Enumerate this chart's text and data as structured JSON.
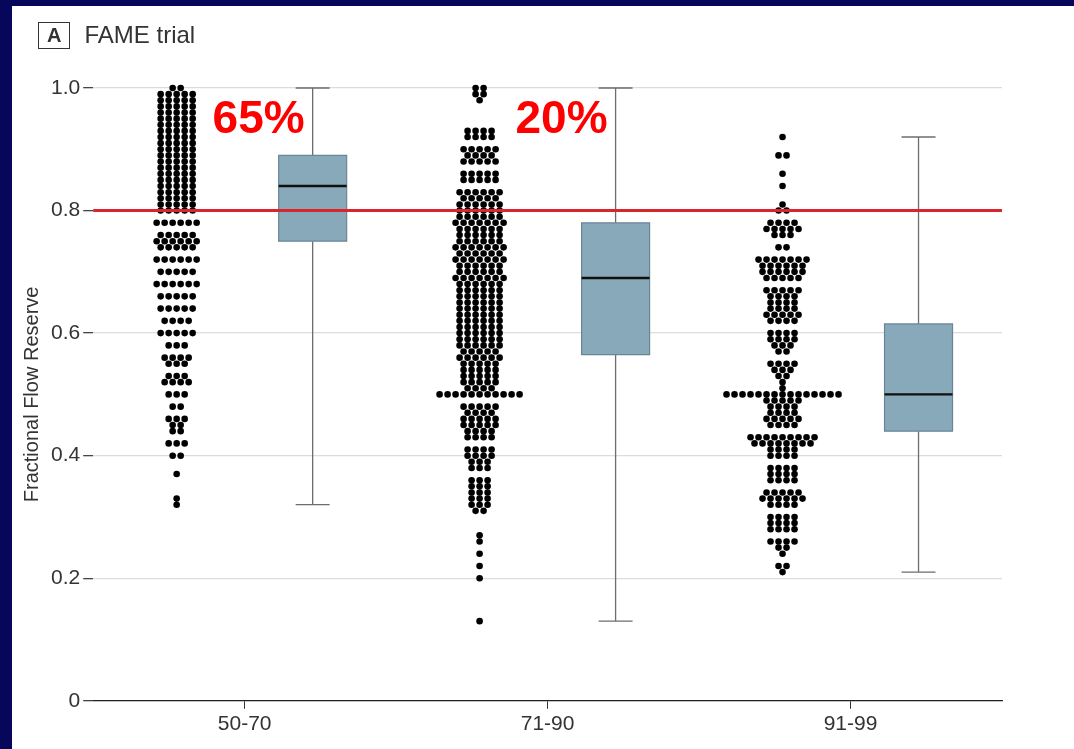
{
  "chart_data": {
    "type": "box",
    "title": "FAME trial",
    "ylabel": "Fractional Flow Reserve",
    "annotations": [
      "A",
      "65%",
      "20%"
    ],
    "categories": [
      "50-70",
      "71-90",
      "91-99"
    ],
    "ylim": [
      0,
      1
    ],
    "yticks": [
      0,
      0.2,
      0.4,
      0.6,
      0.8,
      {
        "value": 1,
        "label": "1.0"
      }
    ],
    "grid": "y",
    "legend": false,
    "marker": "circle",
    "ref_lines": [
      {
        "axis": "y",
        "value": 0.8,
        "color": "#d9262c"
      }
    ],
    "series": [
      {
        "color": "#88a9b9",
        "boxes": [
          {
            "low": 0.32,
            "q1": 0.75,
            "median": 0.84,
            "q3": 0.89,
            "high": 1.0
          },
          {
            "low": 0.13,
            "q1": 0.565,
            "median": 0.69,
            "q3": 0.78,
            "high": 1.0
          },
          {
            "low": 0.21,
            "q1": 0.44,
            "median": 0.5,
            "q3": 0.615,
            "high": 0.92
          }
        ]
      },
      {
        "type": "scatter",
        "color": "#000000",
        "x": [
          "50-70",
          "50-70",
          "50-70",
          "50-70",
          "50-70",
          "50-70",
          "50-70",
          "50-70",
          "50-70",
          "50-70",
          "50-70",
          "50-70",
          "50-70",
          "50-70",
          "50-70",
          "50-70",
          "50-70",
          "50-70",
          "50-70",
          "50-70",
          "50-70",
          "50-70",
          "50-70",
          "50-70",
          "50-70",
          "50-70",
          "50-70",
          "50-70",
          "50-70",
          "50-70",
          "50-70",
          "50-70",
          "50-70",
          "50-70",
          "50-70",
          "50-70",
          "50-70",
          "50-70",
          "50-70",
          "50-70",
          "50-70",
          "50-70",
          "50-70",
          "50-70",
          "50-70",
          "50-70",
          "50-70",
          "50-70",
          "50-70",
          "50-70",
          "50-70",
          "50-70",
          "50-70",
          "50-70",
          "50-70",
          "50-70",
          "50-70",
          "50-70",
          "50-70",
          "50-70",
          "50-70",
          "50-70",
          "50-70",
          "50-70",
          "50-70",
          "50-70",
          "50-70",
          "50-70",
          "50-70",
          "50-70",
          "50-70",
          "50-70",
          "50-70",
          "50-70",
          "50-70",
          "50-70",
          "50-70",
          "50-70",
          "50-70",
          "50-70",
          "50-70",
          "50-70",
          "50-70",
          "50-70",
          "50-70",
          "50-70",
          "50-70",
          "50-70",
          "50-70",
          "50-70",
          "50-70",
          "50-70",
          "50-70",
          "50-70",
          "50-70",
          "50-70",
          "50-70",
          "50-70",
          "50-70",
          "50-70",
          "50-70",
          "50-70",
          "50-70",
          "50-70",
          "50-70",
          "50-70",
          "50-70",
          "50-70",
          "50-70",
          "50-70",
          "50-70",
          "50-70",
          "50-70",
          "50-70",
          "50-70",
          "50-70",
          "50-70",
          "50-70",
          "50-70",
          "50-70",
          "50-70",
          "50-70",
          "50-70",
          "50-70",
          "50-70",
          "50-70",
          "50-70",
          "50-70",
          "50-70",
          "50-70",
          "50-70",
          "50-70",
          "50-70",
          "50-70",
          "50-70",
          "50-70",
          "50-70",
          "50-70",
          "50-70",
          "50-70",
          "50-70",
          "50-70",
          "50-70",
          "50-70",
          "50-70",
          "50-70",
          "50-70",
          "50-70",
          "50-70",
          "50-70",
          "50-70",
          "50-70",
          "50-70",
          "50-70",
          "50-70",
          "50-70",
          "50-70",
          "50-70",
          "50-70",
          "50-70",
          "50-70",
          "50-70",
          "50-70",
          "50-70",
          "50-70",
          "50-70",
          "50-70",
          "50-70",
          "50-70",
          "50-70",
          "50-70",
          "50-70",
          "50-70",
          "50-70",
          "50-70",
          "50-70",
          "50-70",
          "50-70",
          "50-70",
          "50-70",
          "50-70",
          "50-70",
          "50-70",
          "50-70",
          "50-70",
          "50-70",
          "50-70",
          "50-70",
          "50-70",
          "50-70",
          "50-70",
          "50-70",
          "50-70",
          "50-70",
          "50-70",
          "50-70",
          "50-70"
        ],
        "values": [
          1,
          1,
          0.99,
          0.99,
          0.99,
          0.99,
          0.99,
          0.98,
          0.98,
          0.98,
          0.98,
          0.98,
          0.97,
          0.97,
          0.97,
          0.97,
          0.97,
          0.96,
          0.96,
          0.96,
          0.96,
          0.96,
          0.95,
          0.95,
          0.95,
          0.95,
          0.95,
          0.94,
          0.94,
          0.94,
          0.94,
          0.94,
          0.93,
          0.93,
          0.93,
          0.93,
          0.93,
          0.92,
          0.92,
          0.92,
          0.92,
          0.92,
          0.91,
          0.91,
          0.91,
          0.91,
          0.91,
          0.9,
          0.9,
          0.9,
          0.9,
          0.9,
          0.89,
          0.89,
          0.89,
          0.89,
          0.89,
          0.88,
          0.88,
          0.88,
          0.88,
          0.88,
          0.87,
          0.87,
          0.87,
          0.87,
          0.87,
          0.86,
          0.86,
          0.86,
          0.86,
          0.86,
          0.85,
          0.85,
          0.85,
          0.85,
          0.85,
          0.84,
          0.84,
          0.84,
          0.84,
          0.84,
          0.83,
          0.83,
          0.83,
          0.83,
          0.83,
          0.82,
          0.82,
          0.82,
          0.82,
          0.82,
          0.81,
          0.81,
          0.81,
          0.81,
          0.81,
          0.8,
          0.8,
          0.8,
          0.8,
          0.8,
          0.78,
          0.78,
          0.78,
          0.78,
          0.78,
          0.78,
          0.76,
          0.76,
          0.76,
          0.76,
          0.76,
          0.75,
          0.75,
          0.75,
          0.75,
          0.75,
          0.75,
          0.74,
          0.74,
          0.74,
          0.74,
          0.74,
          0.72,
          0.72,
          0.72,
          0.72,
          0.72,
          0.72,
          0.7,
          0.7,
          0.7,
          0.7,
          0.7,
          0.68,
          0.68,
          0.68,
          0.68,
          0.68,
          0.68,
          0.66,
          0.66,
          0.66,
          0.66,
          0.66,
          0.64,
          0.64,
          0.64,
          0.64,
          0.64,
          0.62,
          0.62,
          0.62,
          0.62,
          0.6,
          0.6,
          0.6,
          0.6,
          0.6,
          0.58,
          0.58,
          0.58,
          0.56,
          0.56,
          0.56,
          0.56,
          0.55,
          0.55,
          0.55,
          0.53,
          0.53,
          0.53,
          0.52,
          0.52,
          0.52,
          0.52,
          0.5,
          0.5,
          0.5,
          0.48,
          0.48,
          0.46,
          0.46,
          0.46,
          0.45,
          0.45,
          0.44,
          0.44,
          0.42,
          0.42,
          0.42,
          0.4,
          0.4,
          0.37,
          0.33,
          0.32
        ]
      },
      {
        "type": "scatter",
        "color": "#000000",
        "x": [
          "71-90",
          "71-90",
          "71-90",
          "71-90",
          "71-90",
          "71-90",
          "71-90",
          "71-90",
          "71-90",
          "71-90",
          "71-90",
          "71-90",
          "71-90",
          "71-90",
          "71-90",
          "71-90",
          "71-90",
          "71-90",
          "71-90",
          "71-90",
          "71-90",
          "71-90",
          "71-90",
          "71-90",
          "71-90",
          "71-90",
          "71-90",
          "71-90",
          "71-90",
          "71-90",
          "71-90",
          "71-90",
          "71-90",
          "71-90",
          "71-90",
          "71-90",
          "71-90",
          "71-90",
          "71-90",
          "71-90",
          "71-90",
          "71-90",
          "71-90",
          "71-90",
          "71-90",
          "71-90",
          "71-90",
          "71-90",
          "71-90",
          "71-90",
          "71-90",
          "71-90",
          "71-90",
          "71-90",
          "71-90",
          "71-90",
          "71-90",
          "71-90",
          "71-90",
          "71-90",
          "71-90",
          "71-90",
          "71-90",
          "71-90",
          "71-90",
          "71-90",
          "71-90",
          "71-90",
          "71-90",
          "71-90",
          "71-90",
          "71-90",
          "71-90",
          "71-90",
          "71-90",
          "71-90",
          "71-90",
          "71-90",
          "71-90",
          "71-90",
          "71-90",
          "71-90",
          "71-90",
          "71-90",
          "71-90",
          "71-90",
          "71-90",
          "71-90",
          "71-90",
          "71-90",
          "71-90",
          "71-90",
          "71-90",
          "71-90",
          "71-90",
          "71-90",
          "71-90",
          "71-90",
          "71-90",
          "71-90",
          "71-90",
          "71-90",
          "71-90",
          "71-90",
          "71-90",
          "71-90",
          "71-90",
          "71-90",
          "71-90",
          "71-90",
          "71-90",
          "71-90",
          "71-90",
          "71-90",
          "71-90",
          "71-90",
          "71-90",
          "71-90",
          "71-90",
          "71-90",
          "71-90",
          "71-90",
          "71-90",
          "71-90",
          "71-90",
          "71-90",
          "71-90",
          "71-90",
          "71-90",
          "71-90",
          "71-90",
          "71-90",
          "71-90",
          "71-90",
          "71-90",
          "71-90",
          "71-90",
          "71-90",
          "71-90",
          "71-90",
          "71-90",
          "71-90",
          "71-90",
          "71-90",
          "71-90",
          "71-90",
          "71-90",
          "71-90",
          "71-90",
          "71-90",
          "71-90",
          "71-90",
          "71-90",
          "71-90",
          "71-90",
          "71-90",
          "71-90",
          "71-90",
          "71-90",
          "71-90",
          "71-90",
          "71-90",
          "71-90",
          "71-90",
          "71-90",
          "71-90",
          "71-90",
          "71-90",
          "71-90",
          "71-90",
          "71-90",
          "71-90",
          "71-90",
          "71-90",
          "71-90",
          "71-90",
          "71-90",
          "71-90",
          "71-90",
          "71-90",
          "71-90",
          "71-90",
          "71-90",
          "71-90",
          "71-90",
          "71-90",
          "71-90",
          "71-90",
          "71-90",
          "71-90",
          "71-90",
          "71-90",
          "71-90",
          "71-90",
          "71-90",
          "71-90",
          "71-90",
          "71-90",
          "71-90",
          "71-90",
          "71-90",
          "71-90",
          "71-90",
          "71-90",
          "71-90",
          "71-90",
          "71-90",
          "71-90",
          "71-90",
          "71-90",
          "71-90",
          "71-90",
          "71-90",
          "71-90",
          "71-90",
          "71-90",
          "71-90",
          "71-90",
          "71-90",
          "71-90",
          "71-90",
          "71-90",
          "71-90",
          "71-90",
          "71-90",
          "71-90",
          "71-90",
          "71-90",
          "71-90",
          "71-90",
          "71-90",
          "71-90",
          "71-90",
          "71-90",
          "71-90",
          "71-90",
          "71-90",
          "71-90",
          "71-90",
          "71-90",
          "71-90",
          "71-90",
          "71-90",
          "71-90",
          "71-90",
          "71-90",
          "71-90",
          "71-90",
          "71-90",
          "71-90",
          "71-90",
          "71-90",
          "71-90",
          "71-90",
          "71-90",
          "71-90",
          "71-90",
          "71-90",
          "71-90",
          "71-90",
          "71-90",
          "71-90",
          "71-90",
          "71-90",
          "71-90",
          "71-90",
          "71-90",
          "71-90",
          "71-90",
          "71-90",
          "71-90",
          "71-90",
          "71-90",
          "71-90",
          "71-90",
          "71-90",
          "71-90",
          "71-90",
          "71-90",
          "71-90",
          "71-90",
          "71-90",
          "71-90",
          "71-90",
          "71-90",
          "71-90",
          "71-90",
          "71-90",
          "71-90",
          "71-90",
          "71-90",
          "71-90",
          "71-90",
          "71-90",
          "71-90",
          "71-90",
          "71-90",
          "71-90",
          "71-90",
          "71-90",
          "71-90",
          "71-90",
          "71-90",
          "71-90",
          "71-90",
          "71-90"
        ],
        "values": [
          1,
          1,
          0.99,
          0.99,
          0.98,
          0.93,
          0.93,
          0.93,
          0.93,
          0.92,
          0.92,
          0.92,
          0.92,
          0.9,
          0.9,
          0.9,
          0.9,
          0.9,
          0.89,
          0.89,
          0.89,
          0.89,
          0.88,
          0.88,
          0.88,
          0.88,
          0.88,
          0.86,
          0.86,
          0.86,
          0.86,
          0.86,
          0.85,
          0.85,
          0.85,
          0.85,
          0.85,
          0.83,
          0.83,
          0.83,
          0.83,
          0.83,
          0.83,
          0.82,
          0.82,
          0.82,
          0.82,
          0.82,
          0.81,
          0.81,
          0.81,
          0.81,
          0.81,
          0.81,
          0.8,
          0.8,
          0.8,
          0.8,
          0.8,
          0.8,
          0.79,
          0.79,
          0.79,
          0.79,
          0.79,
          0.79,
          0.78,
          0.78,
          0.78,
          0.78,
          0.78,
          0.78,
          0.78,
          0.77,
          0.77,
          0.77,
          0.77,
          0.77,
          0.77,
          0.76,
          0.76,
          0.76,
          0.76,
          0.76,
          0.76,
          0.75,
          0.75,
          0.75,
          0.75,
          0.75,
          0.75,
          0.74,
          0.74,
          0.74,
          0.74,
          0.74,
          0.74,
          0.74,
          0.73,
          0.73,
          0.73,
          0.73,
          0.73,
          0.73,
          0.72,
          0.72,
          0.72,
          0.72,
          0.72,
          0.72,
          0.72,
          0.71,
          0.71,
          0.71,
          0.71,
          0.71,
          0.71,
          0.7,
          0.7,
          0.7,
          0.7,
          0.7,
          0.7,
          0.69,
          0.69,
          0.69,
          0.69,
          0.69,
          0.69,
          0.69,
          0.68,
          0.68,
          0.68,
          0.68,
          0.68,
          0.68,
          0.67,
          0.67,
          0.67,
          0.67,
          0.67,
          0.67,
          0.66,
          0.66,
          0.66,
          0.66,
          0.66,
          0.66,
          0.65,
          0.65,
          0.65,
          0.65,
          0.65,
          0.65,
          0.64,
          0.64,
          0.64,
          0.64,
          0.64,
          0.64,
          0.63,
          0.63,
          0.63,
          0.63,
          0.63,
          0.63,
          0.62,
          0.62,
          0.62,
          0.62,
          0.62,
          0.62,
          0.61,
          0.61,
          0.61,
          0.61,
          0.61,
          0.61,
          0.6,
          0.6,
          0.6,
          0.6,
          0.6,
          0.6,
          0.59,
          0.59,
          0.59,
          0.59,
          0.59,
          0.59,
          0.58,
          0.58,
          0.58,
          0.58,
          0.58,
          0.58,
          0.57,
          0.57,
          0.57,
          0.57,
          0.57,
          0.56,
          0.56,
          0.56,
          0.56,
          0.56,
          0.56,
          0.55,
          0.55,
          0.55,
          0.55,
          0.55,
          0.54,
          0.54,
          0.54,
          0.54,
          0.54,
          0.53,
          0.53,
          0.53,
          0.53,
          0.53,
          0.52,
          0.52,
          0.52,
          0.52,
          0.52,
          0.51,
          0.51,
          0.51,
          0.51,
          0.5,
          0.5,
          0.5,
          0.5,
          0.5,
          0.5,
          0.5,
          0.5,
          0.5,
          0.5,
          0.5,
          0.48,
          0.48,
          0.48,
          0.48,
          0.48,
          0.47,
          0.47,
          0.47,
          0.47,
          0.46,
          0.46,
          0.46,
          0.46,
          0.46,
          0.45,
          0.45,
          0.45,
          0.45,
          0.45,
          0.44,
          0.44,
          0.44,
          0.44,
          0.43,
          0.43,
          0.43,
          0.43,
          0.41,
          0.41,
          0.41,
          0.41,
          0.4,
          0.4,
          0.4,
          0.4,
          0.39,
          0.39,
          0.39,
          0.38,
          0.38,
          0.38,
          0.36,
          0.36,
          0.36,
          0.35,
          0.35,
          0.35,
          0.34,
          0.34,
          0.34,
          0.33,
          0.33,
          0.33,
          0.32,
          0.32,
          0.32,
          0.31,
          0.31,
          0.27,
          0.26,
          0.24,
          0.22,
          0.2,
          0.13
        ]
      },
      {
        "type": "scatter",
        "color": "#000000",
        "x": [
          "91-99",
          "91-99",
          "91-99",
          "91-99",
          "91-99",
          "91-99",
          "91-99",
          "91-99",
          "91-99",
          "91-99",
          "91-99",
          "91-99",
          "91-99",
          "91-99",
          "91-99",
          "91-99",
          "91-99",
          "91-99",
          "91-99",
          "91-99",
          "91-99",
          "91-99",
          "91-99",
          "91-99",
          "91-99",
          "91-99",
          "91-99",
          "91-99",
          "91-99",
          "91-99",
          "91-99",
          "91-99",
          "91-99",
          "91-99",
          "91-99",
          "91-99",
          "91-99",
          "91-99",
          "91-99",
          "91-99",
          "91-99",
          "91-99",
          "91-99",
          "91-99",
          "91-99",
          "91-99",
          "91-99",
          "91-99",
          "91-99",
          "91-99",
          "91-99",
          "91-99",
          "91-99",
          "91-99",
          "91-99",
          "91-99",
          "91-99",
          "91-99",
          "91-99",
          "91-99",
          "91-99",
          "91-99",
          "91-99",
          "91-99",
          "91-99",
          "91-99",
          "91-99",
          "91-99",
          "91-99",
          "91-99",
          "91-99",
          "91-99",
          "91-99",
          "91-99",
          "91-99",
          "91-99",
          "91-99",
          "91-99",
          "91-99",
          "91-99",
          "91-99",
          "91-99",
          "91-99",
          "91-99",
          "91-99",
          "91-99",
          "91-99",
          "91-99",
          "91-99",
          "91-99",
          "91-99",
          "91-99",
          "91-99",
          "91-99",
          "91-99",
          "91-99",
          "91-99",
          "91-99",
          "91-99",
          "91-99",
          "91-99",
          "91-99",
          "91-99",
          "91-99",
          "91-99",
          "91-99",
          "91-99",
          "91-99",
          "91-99",
          "91-99",
          "91-99",
          "91-99",
          "91-99",
          "91-99",
          "91-99",
          "91-99",
          "91-99",
          "91-99",
          "91-99",
          "91-99",
          "91-99",
          "91-99",
          "91-99",
          "91-99",
          "91-99",
          "91-99",
          "91-99",
          "91-99",
          "91-99",
          "91-99",
          "91-99",
          "91-99",
          "91-99",
          "91-99",
          "91-99",
          "91-99",
          "91-99",
          "91-99",
          "91-99",
          "91-99",
          "91-99",
          "91-99",
          "91-99",
          "91-99",
          "91-99",
          "91-99",
          "91-99",
          "91-99",
          "91-99",
          "91-99",
          "91-99",
          "91-99",
          "91-99",
          "91-99",
          "91-99",
          "91-99",
          "91-99",
          "91-99",
          "91-99",
          "91-99",
          "91-99",
          "91-99",
          "91-99",
          "91-99",
          "91-99",
          "91-99",
          "91-99",
          "91-99",
          "91-99",
          "91-99",
          "91-99",
          "91-99",
          "91-99",
          "91-99",
          "91-99",
          "91-99",
          "91-99",
          "91-99",
          "91-99",
          "91-99",
          "91-99",
          "91-99",
          "91-99",
          "91-99",
          "91-99",
          "91-99",
          "91-99",
          "91-99",
          "91-99",
          "91-99",
          "91-99",
          "91-99",
          "91-99",
          "91-99",
          "91-99",
          "91-99",
          "91-99",
          "91-99",
          "91-99",
          "91-99",
          "91-99",
          "91-99",
          "91-99",
          "91-99",
          "91-99",
          "91-99",
          "91-99"
        ],
        "values": [
          0.92,
          0.89,
          0.89,
          0.86,
          0.84,
          0.81,
          0.8,
          0.8,
          0.78,
          0.78,
          0.78,
          0.78,
          0.77,
          0.77,
          0.77,
          0.77,
          0.77,
          0.76,
          0.76,
          0.76,
          0.74,
          0.74,
          0.72,
          0.72,
          0.72,
          0.72,
          0.72,
          0.72,
          0.72,
          0.71,
          0.71,
          0.71,
          0.71,
          0.71,
          0.71,
          0.7,
          0.7,
          0.7,
          0.7,
          0.7,
          0.7,
          0.69,
          0.69,
          0.69,
          0.69,
          0.69,
          0.67,
          0.67,
          0.67,
          0.67,
          0.67,
          0.66,
          0.66,
          0.66,
          0.66,
          0.65,
          0.65,
          0.65,
          0.65,
          0.64,
          0.64,
          0.64,
          0.64,
          0.63,
          0.63,
          0.63,
          0.63,
          0.63,
          0.62,
          0.62,
          0.62,
          0.62,
          0.6,
          0.6,
          0.6,
          0.6,
          0.59,
          0.59,
          0.59,
          0.59,
          0.58,
          0.58,
          0.58,
          0.57,
          0.57,
          0.55,
          0.55,
          0.55,
          0.55,
          0.54,
          0.54,
          0.54,
          0.53,
          0.53,
          0.52,
          0.51,
          0.5,
          0.5,
          0.5,
          0.5,
          0.5,
          0.5,
          0.5,
          0.5,
          0.5,
          0.5,
          0.5,
          0.5,
          0.5,
          0.5,
          0.5,
          0.49,
          0.49,
          0.49,
          0.49,
          0.49,
          0.48,
          0.48,
          0.48,
          0.48,
          0.47,
          0.47,
          0.47,
          0.47,
          0.46,
          0.46,
          0.46,
          0.46,
          0.46,
          0.45,
          0.45,
          0.45,
          0.45,
          0.43,
          0.43,
          0.43,
          0.43,
          0.43,
          0.43,
          0.43,
          0.43,
          0.43,
          0.42,
          0.42,
          0.42,
          0.42,
          0.42,
          0.42,
          0.42,
          0.42,
          0.41,
          0.41,
          0.41,
          0.41,
          0.4,
          0.4,
          0.4,
          0.4,
          0.38,
          0.38,
          0.38,
          0.38,
          0.37,
          0.37,
          0.37,
          0.37,
          0.36,
          0.36,
          0.36,
          0.36,
          0.34,
          0.34,
          0.34,
          0.34,
          0.34,
          0.33,
          0.33,
          0.33,
          0.33,
          0.33,
          0.33,
          0.32,
          0.32,
          0.32,
          0.32,
          0.3,
          0.3,
          0.3,
          0.3,
          0.29,
          0.29,
          0.29,
          0.29,
          0.28,
          0.28,
          0.28,
          0.28,
          0.26,
          0.26,
          0.26,
          0.26,
          0.25,
          0.25,
          0.24,
          0.22,
          0.22,
          0.21
        ]
      }
    ]
  }
}
